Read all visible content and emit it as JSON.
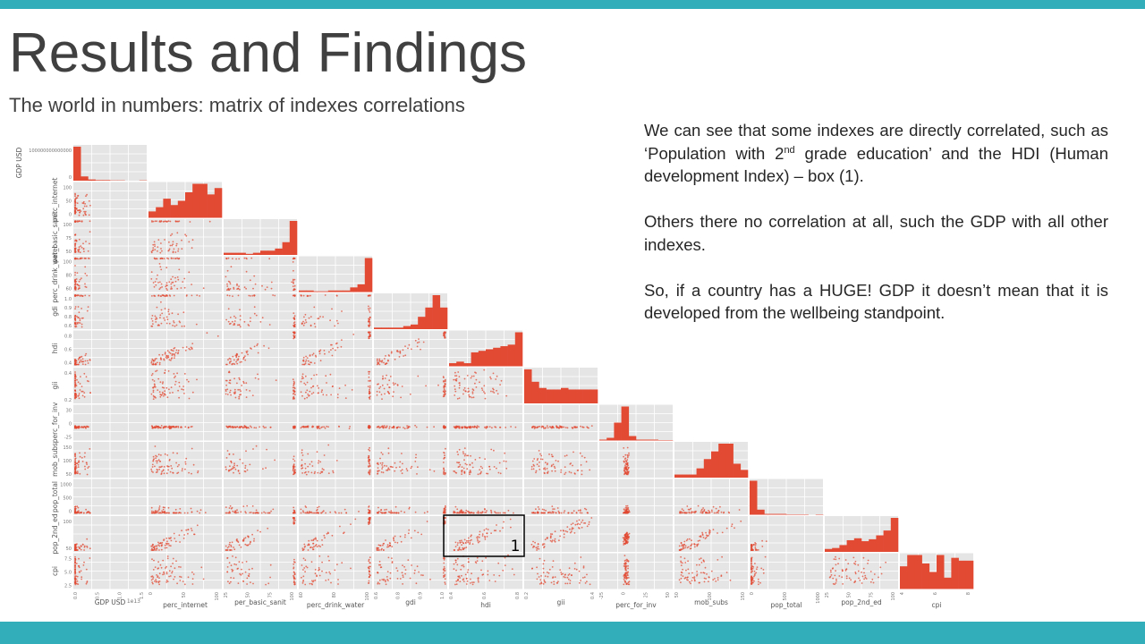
{
  "slide": {
    "title": "Results and Findings",
    "subtitle": "The world in numbers: matrix of indexes correlations",
    "notes": {
      "p1_before": "We can see that some indexes are directly correlated, such as ‘Population with 2",
      "p1_sup": "nd",
      "p1_after": " grade education’ and the HDI (Human development Index) – box (1).",
      "p2": "Others there no correlation at all, such the GDP with all other indexes.",
      "p3": "So, if a country has a HUGE! GDP it doesn’t mean that it is developed from the wellbeing standpoint."
    }
  },
  "colors": {
    "accent_band": "#31aeb9",
    "panel_bg": "#e5e5e5",
    "bar": "#e24a33",
    "point": "#e24a33"
  },
  "chart_data": {
    "type": "scatter",
    "title": "",
    "layout": "lower-triangular scatter matrix with histograms on the diagonal",
    "grid": true,
    "variables": [
      "GDP USD",
      "perc_internet",
      "per_basic_sanit",
      "perc_drink_water",
      "gdi",
      "hdi",
      "gii",
      "perc_for_inv",
      "mob_subs",
      "pop_total",
      "pop_2nd_ed",
      "cpi"
    ],
    "row_labels": [
      "GDP USD",
      "perc_internet",
      "per_basic_sanit",
      "perc_drink_water",
      "gdi",
      "hdi",
      "gii",
      "perc_for_inv",
      "mob_subs",
      "pop_total",
      "pop_2nd_ed",
      "cpi"
    ],
    "column_labels": [
      "GDP USD",
      "perc_internet",
      "per_basic_sanit",
      "perc_drink_water",
      "gdi",
      "hdi",
      "gii",
      "perc_for_inv",
      "mob_subs",
      "pop_total",
      "pop_2nd_ed",
      "cpi"
    ],
    "ranges": [
      [
        0,
        18000000000000
      ],
      [
        0,
        100
      ],
      [
        15,
        100
      ],
      [
        50,
        100
      ],
      [
        0.55,
        1.05
      ],
      [
        0.3,
        0.95
      ],
      [
        0.05,
        0.75
      ],
      [
        -25,
        50
      ],
      [
        25,
        200
      ],
      [
        0,
        1400
      ],
      [
        15,
        100
      ],
      [
        2,
        9
      ]
    ],
    "x_ticks": [
      [
        "0.0",
        "0.5",
        "1.0",
        "1.5"
      ],
      [
        "0",
        "50",
        "100"
      ],
      [
        "25",
        "50",
        "75",
        "100"
      ],
      [
        "60",
        "80",
        "100"
      ],
      [
        "0.6",
        "0.8",
        "0.9",
        "1.0"
      ],
      [
        "0.4",
        "0.6",
        "0.8"
      ],
      [
        "0.2",
        "0.4"
      ],
      [
        "-25",
        "0",
        "25",
        "50"
      ],
      [
        "50",
        "100",
        "150"
      ],
      [
        "0",
        "500",
        "1000"
      ],
      [
        "25",
        "50",
        "75",
        "100"
      ],
      [
        "4",
        "6",
        "8"
      ]
    ],
    "x_offset_label": "1e13",
    "y_ticks": [
      [
        "100000000000000",
        "0"
      ],
      [
        "100",
        "50",
        "0"
      ],
      [
        "100",
        "75",
        "50"
      ],
      [
        "100",
        "80",
        "60"
      ],
      [
        "1.0",
        "0.9",
        "0.8",
        "0.6"
      ],
      [
        "0.8",
        "0.6",
        "0.4"
      ],
      [
        "0.4",
        "0.2"
      ],
      [
        "30",
        "0",
        "-25"
      ],
      [
        "150",
        "100",
        "50"
      ],
      [
        "1000",
        "500",
        "0"
      ],
      [
        "100",
        "50"
      ],
      [
        "7.5",
        "5.0",
        "2.5"
      ]
    ],
    "histograms": [
      [
        56,
        7,
        2,
        1,
        1,
        0.5,
        0.5,
        0,
        0,
        0.5
      ],
      [
        3,
        5,
        9,
        6,
        8,
        12,
        16,
        16,
        11,
        14
      ],
      [
        1,
        1,
        1,
        0.5,
        1,
        2,
        2,
        3,
        6,
        16
      ],
      [
        1,
        1,
        0.5,
        0.5,
        1,
        1,
        1,
        3,
        5,
        22
      ],
      [
        1,
        1,
        1,
        1,
        2,
        3,
        8,
        14,
        22,
        14
      ],
      [
        2,
        3,
        2,
        9,
        10,
        11,
        12,
        13,
        14,
        22
      ],
      [
        22,
        14,
        10,
        9,
        9,
        10,
        9,
        9,
        9,
        9
      ],
      [
        1,
        3,
        20,
        38,
        5,
        1,
        1,
        1,
        0.5,
        0.5
      ],
      [
        2,
        2,
        2,
        6,
        12,
        17,
        22,
        22,
        9,
        5
      ],
      [
        40,
        6,
        1,
        1,
        1,
        0.5,
        0.5,
        0.5,
        0,
        0.5
      ],
      [
        3,
        4,
        7,
        12,
        14,
        11,
        13,
        17,
        22,
        35
      ],
      [
        8,
        12,
        12,
        9,
        6,
        12,
        4,
        11,
        10,
        10
      ]
    ],
    "annotations": [
      {
        "label": "1",
        "row": "pop_2nd_ed",
        "column": "hdi"
      }
    ]
  }
}
